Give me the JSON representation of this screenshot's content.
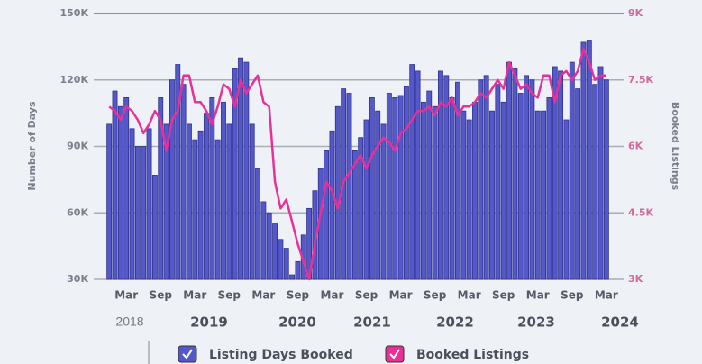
{
  "chart_data": {
    "type": "bar_line",
    "y_label": "Number of Days",
    "y2_label": "Booked Listings",
    "categories": [
      null,
      null,
      null,
      "Mar",
      null,
      null,
      null,
      null,
      null,
      "Sep",
      null,
      null,
      null,
      null,
      null,
      "Mar",
      null,
      null,
      null,
      null,
      null,
      "Sep",
      null,
      null,
      null,
      null,
      null,
      "Mar",
      null,
      null,
      null,
      null,
      null,
      "Sep",
      null,
      null,
      null,
      null,
      null,
      "Mar",
      null,
      null,
      null,
      null,
      null,
      "Sep",
      null,
      null,
      null,
      null,
      null,
      "Mar",
      null,
      null,
      null,
      null,
      null,
      "Sep",
      null,
      null,
      null,
      null,
      null,
      "Mar",
      null,
      null,
      null,
      null,
      null,
      "Sep",
      null,
      null,
      null,
      null,
      null,
      "Mar",
      null,
      null,
      null,
      null,
      null,
      "Sep",
      null,
      null,
      null,
      null,
      null,
      "Mar"
    ],
    "year_labels": [
      "2018",
      "2019",
      "2020",
      "2021",
      "2022",
      "2023",
      "2024"
    ],
    "series": [
      {
        "name": "Listing Days Booked",
        "color": "#5558c8",
        "axis": "y",
        "values": [
          100000,
          115000,
          108000,
          112000,
          98000,
          90000,
          90000,
          98000,
          77000,
          112000,
          100000,
          120000,
          127000,
          118000,
          100000,
          93000,
          97000,
          105000,
          112000,
          93000,
          110000,
          100000,
          125000,
          130000,
          128000,
          100000,
          80000,
          65000,
          60000,
          55000,
          48000,
          44000,
          32000,
          38000,
          50000,
          62000,
          70000,
          80000,
          88000,
          97000,
          108000,
          116000,
          114000,
          88000,
          94000,
          102000,
          112000,
          106000,
          100000,
          114000,
          112000,
          113000,
          117000,
          127000,
          124000,
          110000,
          115000,
          108000,
          124000,
          122000,
          112000,
          119000,
          106000,
          102000,
          110000,
          120000,
          122000,
          106000,
          118000,
          110000,
          128000,
          125000,
          114000,
          122000,
          120000,
          106000,
          106000,
          112000,
          126000,
          124000,
          102000,
          128000,
          116000,
          137000,
          138000,
          118000,
          126000,
          120000
        ]
      },
      {
        "name": "Booked Listings",
        "color": "#e8309a",
        "axis": "y2",
        "values": [
          6900,
          6800,
          6600,
          6900,
          6800,
          6600,
          6300,
          6500,
          6800,
          6600,
          5900,
          6600,
          6800,
          7600,
          7600,
          7000,
          7000,
          6800,
          6500,
          6900,
          7400,
          7300,
          6900,
          7500,
          7200,
          7400,
          7600,
          7000,
          6900,
          5200,
          4600,
          4800,
          4300,
          3800,
          3400,
          3000,
          3800,
          4500,
          5200,
          5000,
          4600,
          5200,
          5400,
          5600,
          5800,
          5500,
          5800,
          6000,
          6200,
          6100,
          5900,
          6300,
          6400,
          6600,
          6800,
          6800,
          6900,
          6700,
          7000,
          6900,
          7100,
          6700,
          6900,
          6900,
          7000,
          7200,
          7100,
          7300,
          7500,
          7300,
          7900,
          7600,
          7300,
          7400,
          7200,
          7100,
          7600,
          7600,
          7000,
          7600,
          7700,
          7500,
          7700,
          8200,
          7900,
          7500,
          7600,
          7600
        ]
      }
    ],
    "ylim": [
      30000,
      150000
    ],
    "yticks": [
      {
        "value": 30000,
        "label": "30K"
      },
      {
        "value": 60000,
        "label": "60K"
      },
      {
        "value": 90000,
        "label": "90K"
      },
      {
        "value": 120000,
        "label": "120K"
      },
      {
        "value": 150000,
        "label": "150K"
      }
    ],
    "y2lim": [
      3000,
      9000
    ],
    "y2ticks": [
      {
        "value": 3000,
        "label": "3K"
      },
      {
        "value": 4500,
        "label": "4.5K"
      },
      {
        "value": 6000,
        "label": "6K"
      },
      {
        "value": 7500,
        "label": "7.5K"
      },
      {
        "value": 9000,
        "label": "9K"
      }
    ],
    "grid": true
  }
}
